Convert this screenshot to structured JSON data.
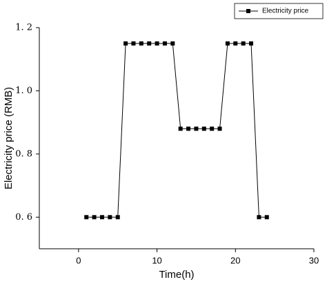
{
  "chart_data": {
    "type": "line",
    "x_label": "Time(h)",
    "y_label": "Electricity price (RMB)",
    "x": [
      1,
      2,
      3,
      4,
      5,
      6,
      7,
      8,
      9,
      10,
      11,
      12,
      13,
      14,
      15,
      16,
      17,
      18,
      19,
      20,
      21,
      22,
      23,
      24
    ],
    "series": [
      {
        "name": "Electricity price",
        "color": "#000000",
        "values": [
          0.6,
          0.6,
          0.6,
          0.6,
          0.6,
          1.15,
          1.15,
          1.15,
          1.15,
          1.15,
          1.15,
          1.15,
          0.88,
          0.88,
          0.88,
          0.88,
          0.88,
          0.88,
          1.15,
          1.15,
          1.15,
          1.15,
          0.6,
          0.6
        ]
      }
    ],
    "xlim": [
      -5,
      30
    ],
    "xticks": [
      0,
      10,
      20,
      30
    ],
    "ylim": [
      0.5,
      1.2
    ],
    "yticks": [
      {
        "value": 0.6,
        "label": "0. 6"
      },
      {
        "value": 0.8,
        "label": "0. 8"
      },
      {
        "value": 1.0,
        "label": "1. 0"
      },
      {
        "value": 1.2,
        "label": "1. 2"
      }
    ],
    "legend": "upper right",
    "grid": false
  }
}
